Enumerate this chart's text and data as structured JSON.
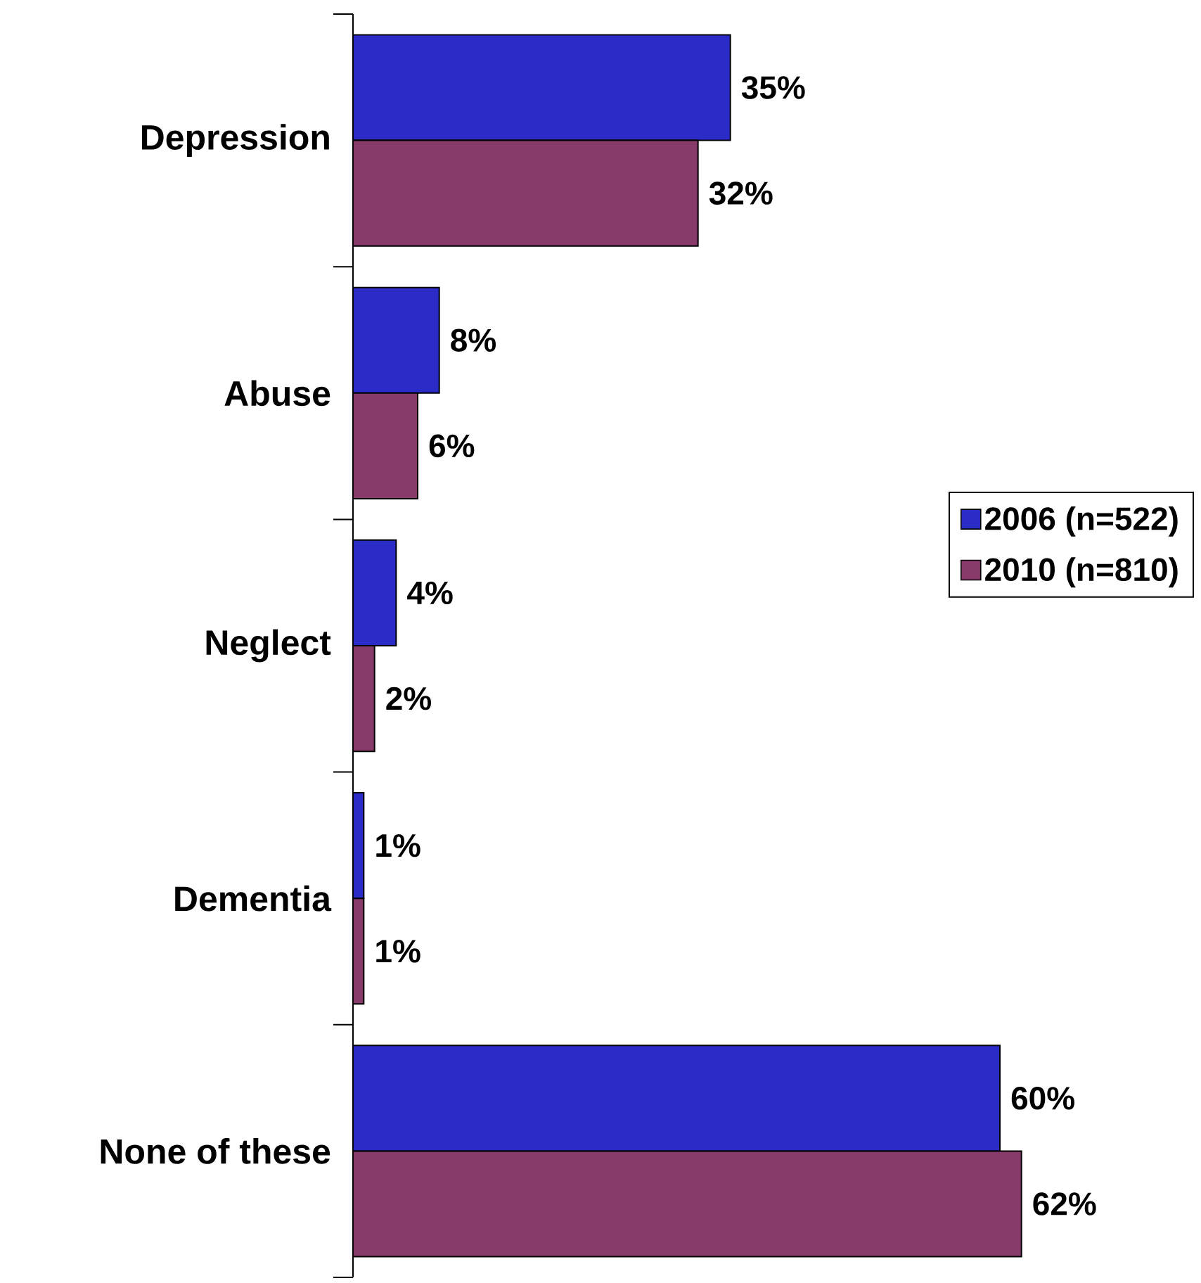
{
  "chart_data": {
    "type": "bar",
    "orientation": "horizontal",
    "categories": [
      "Depression",
      "Abuse",
      "Neglect",
      "Dementia",
      "None of these"
    ],
    "series": [
      {
        "name": "2006 (n=522)",
        "color": "#2b2bc8",
        "values": [
          35,
          8,
          4,
          1,
          60
        ],
        "value_labels": [
          "35%",
          "8%",
          "4%",
          "1%",
          "60%"
        ]
      },
      {
        "name": "2010 (n=810)",
        "color": "#883a6a",
        "values": [
          32,
          6,
          2,
          1,
          62
        ],
        "value_labels": [
          "32%",
          "6%",
          "2%",
          "1%",
          "62%"
        ]
      }
    ],
    "xlim": [
      0,
      78
    ],
    "legend": "right",
    "tick_labels": "y"
  }
}
